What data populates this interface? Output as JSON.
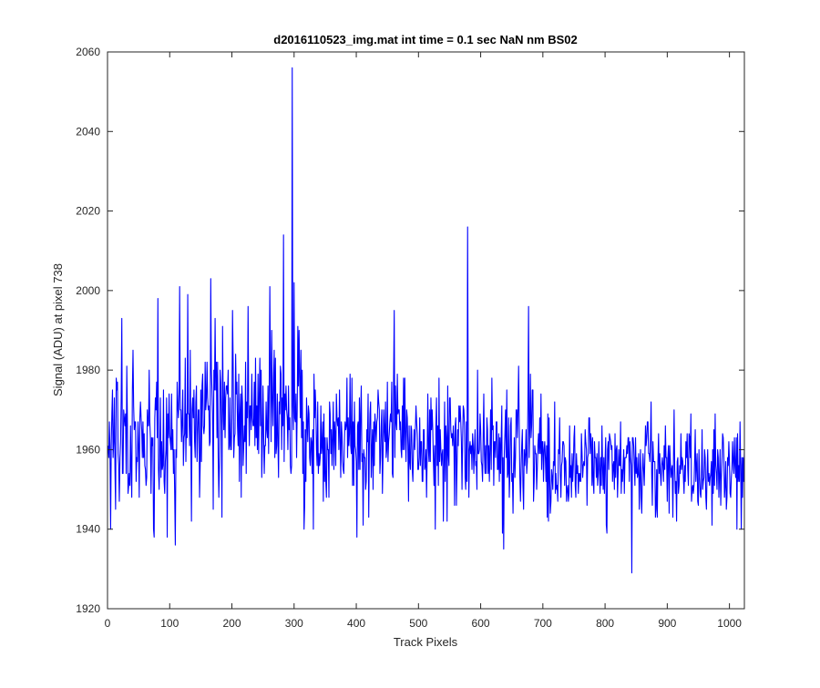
{
  "chart_data": {
    "type": "line",
    "title": "d2016110523_img.mat int time = 0.1 sec  NaN nm BS02",
    "xlabel": "Track Pixels",
    "ylabel": "Signal (ADU) at pixel 738",
    "xlim": [
      0,
      1024
    ],
    "ylim": [
      1920,
      2060
    ],
    "xticks": [
      0,
      100,
      200,
      300,
      400,
      500,
      600,
      700,
      800,
      900,
      1000
    ],
    "yticks": [
      1920,
      1940,
      1960,
      1980,
      2000,
      2020,
      2040,
      2060
    ],
    "grid": false,
    "legend": "none",
    "line_color": "#0000ff",
    "axes_color": "#262626",
    "noise_seed": 2016110523,
    "series": [
      {
        "name": "",
        "noise_segments": [
          {
            "x0": 0,
            "x1": 150,
            "mean": 1963,
            "sd": 9
          },
          {
            "x0": 150,
            "x1": 320,
            "mean": 1968,
            "sd": 10
          },
          {
            "x0": 320,
            "x1": 450,
            "mean": 1962,
            "sd": 8
          },
          {
            "x0": 450,
            "x1": 700,
            "mean": 1961,
            "sd": 8
          },
          {
            "x0": 700,
            "x1": 1024,
            "mean": 1956,
            "sd": 6
          }
        ],
        "points": [
          {
            "x": 4,
            "y": 1940
          },
          {
            "x": 22,
            "y": 1993
          },
          {
            "x": 40,
            "y": 1985
          },
          {
            "x": 80,
            "y": 1998
          },
          {
            "x": 95,
            "y": 1938
          },
          {
            "x": 108,
            "y": 1936
          },
          {
            "x": 115,
            "y": 2001
          },
          {
            "x": 128,
            "y": 1999
          },
          {
            "x": 165,
            "y": 2003
          },
          {
            "x": 172,
            "y": 1993
          },
          {
            "x": 178,
            "y": 1948
          },
          {
            "x": 200,
            "y": 1995
          },
          {
            "x": 225,
            "y": 1996
          },
          {
            "x": 260,
            "y": 2001
          },
          {
            "x": 282,
            "y": 2014
          },
          {
            "x": 296,
            "y": 2056
          },
          {
            "x": 299,
            "y": 2002
          },
          {
            "x": 310,
            "y": 1985
          },
          {
            "x": 316,
            "y": 1946
          },
          {
            "x": 400,
            "y": 1938
          },
          {
            "x": 460,
            "y": 1995
          },
          {
            "x": 578,
            "y": 2016
          },
          {
            "x": 580,
            "y": 1948
          },
          {
            "x": 636,
            "y": 1935
          },
          {
            "x": 676,
            "y": 1996
          },
          {
            "x": 842,
            "y": 1929
          },
          {
            "x": 1018,
            "y": 1940
          }
        ]
      }
    ]
  }
}
